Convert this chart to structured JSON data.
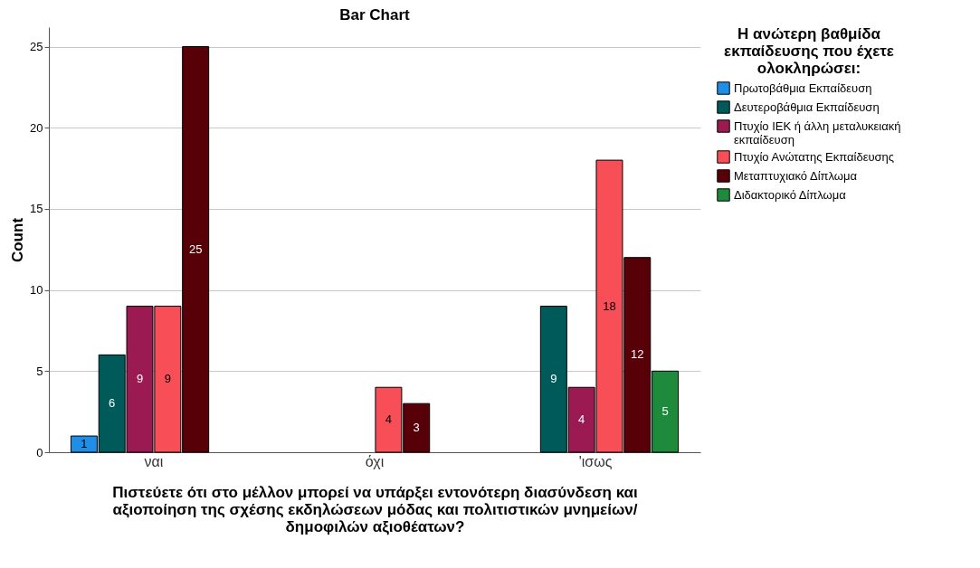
{
  "chart_data": {
    "type": "bar",
    "title": "Bar Chart",
    "xlabel": "Πιστεύετε ότι στο μέλλον μπορεί να υπάρξει εντονότερη διασύνδεση και αξιοποίηση της σχέσης εκδηλώσεων μόδας και πολιτιστικών μνημείων/ δημοφιλών αξιοθέατων?",
    "ylabel": "Count",
    "legend_title": "Η ανώτερη βαθμίδα εκπαίδευσης που έχετε ολοκληρώσει:",
    "categories": [
      "ναι",
      "όχι",
      "'ισως"
    ],
    "series": [
      {
        "name": "Πρωτοβάθμια Εκπαίδευση",
        "color": "#1f8ee6",
        "values": [
          1,
          null,
          null
        ]
      },
      {
        "name": "Δευτεροβάθμια Εκπαίδευση",
        "color": "#005a5a",
        "values": [
          6,
          null,
          9
        ]
      },
      {
        "name": "Πτυχίο ΙΕΚ ή άλλη μεταλυκειακή εκπαίδευση",
        "color": "#9c1a52",
        "values": [
          9,
          null,
          4
        ]
      },
      {
        "name": "Πτυχίο Ανώτατης Εκπαίδευσης",
        "color": "#f74e57",
        "values": [
          9,
          4,
          18
        ]
      },
      {
        "name": "Μεταπτυχιακό Δίπλωμα",
        "color": "#570008",
        "values": [
          25,
          3,
          12
        ]
      },
      {
        "name": "Διδακτορικό Δίπλωμα",
        "color": "#1e8a3c",
        "values": [
          null,
          null,
          5
        ]
      }
    ],
    "ylim": [
      0,
      26.2
    ],
    "yticks": [
      0,
      5,
      10,
      15,
      20,
      25
    ],
    "grid": "y",
    "legend": "top right",
    "data_labels": true
  }
}
